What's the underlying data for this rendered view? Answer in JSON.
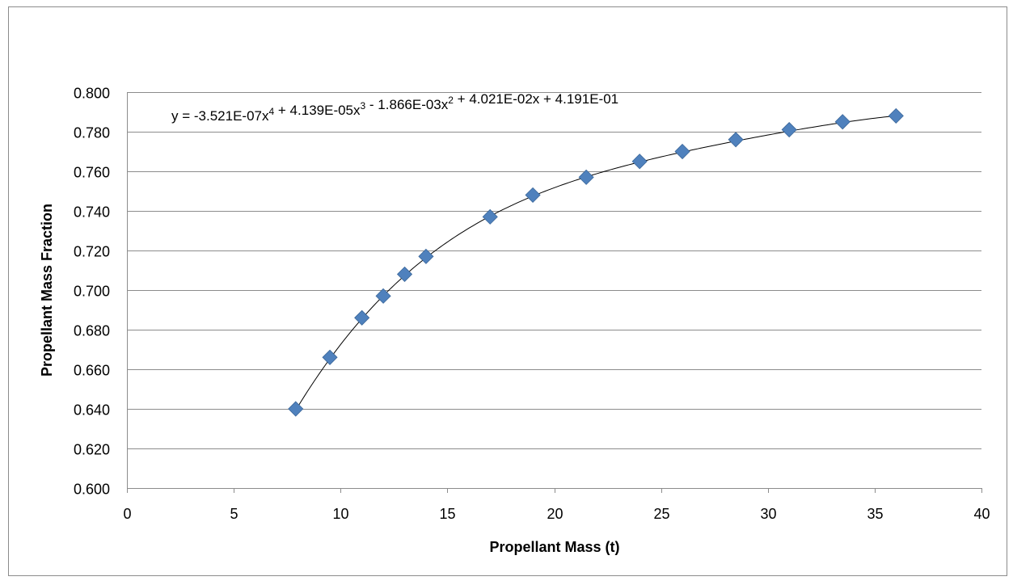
{
  "chart_data": {
    "type": "scatter",
    "title": "",
    "xlabel": "Propellant Mass (t)",
    "ylabel": "Propellant Mass Fraction",
    "xlim": [
      0,
      40
    ],
    "ylim": [
      0.6,
      0.8
    ],
    "x_ticks": [
      "0",
      "5",
      "10",
      "15",
      "20",
      "25",
      "30",
      "35",
      "40"
    ],
    "y_ticks": [
      "0.600",
      "0.620",
      "0.640",
      "0.660",
      "0.680",
      "0.700",
      "0.720",
      "0.740",
      "0.760",
      "0.780",
      "0.800"
    ],
    "grid": "horizontal",
    "legend": "none",
    "marker_color": "#4f81bd",
    "trendline": {
      "type": "polynomial",
      "order": 4,
      "coefficients": [
        -3.521e-07,
        4.139e-05,
        -0.001866,
        0.04021,
        0.4191
      ],
      "equation_parts": [
        {
          "text": "y = -3.521E-07x",
          "sup": "4"
        },
        {
          "text": " + 4.139E-05x",
          "sup": "3"
        },
        {
          "text": " - 1.866E-03x",
          "sup": "2"
        },
        {
          "text": " + 4.021E-02x + 4.191E-01",
          "sup": ""
        }
      ]
    },
    "points": [
      {
        "x": 7.9,
        "y": 0.64
      },
      {
        "x": 9.5,
        "y": 0.666
      },
      {
        "x": 11.0,
        "y": 0.686
      },
      {
        "x": 12.0,
        "y": 0.697
      },
      {
        "x": 13.0,
        "y": 0.708
      },
      {
        "x": 14.0,
        "y": 0.717
      },
      {
        "x": 17.0,
        "y": 0.737
      },
      {
        "x": 19.0,
        "y": 0.748
      },
      {
        "x": 21.5,
        "y": 0.757
      },
      {
        "x": 24.0,
        "y": 0.765
      },
      {
        "x": 26.0,
        "y": 0.77
      },
      {
        "x": 28.5,
        "y": 0.776
      },
      {
        "x": 31.0,
        "y": 0.781
      },
      {
        "x": 33.5,
        "y": 0.785
      },
      {
        "x": 36.0,
        "y": 0.788
      }
    ]
  }
}
